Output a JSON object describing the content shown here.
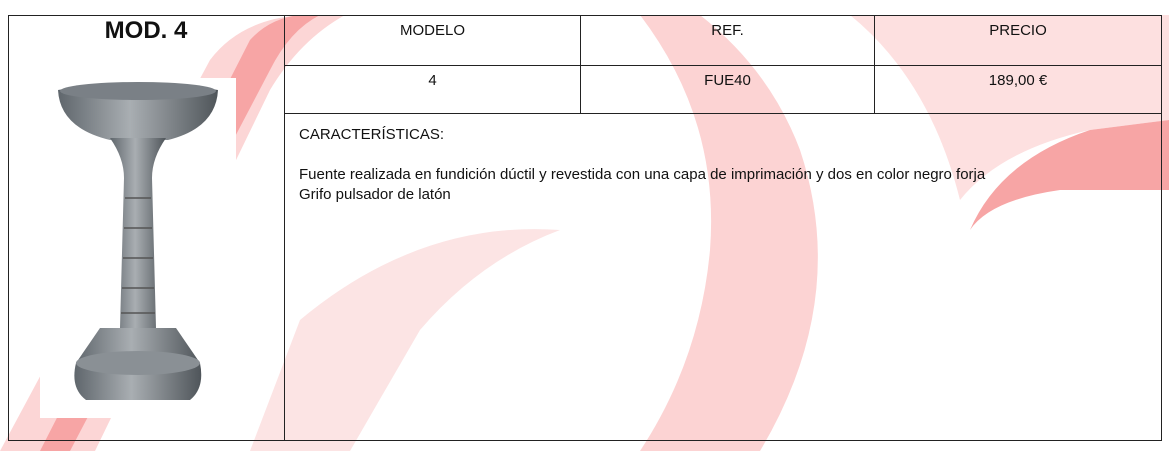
{
  "header": {
    "title": "MOD. 4"
  },
  "table": {
    "headers": [
      "MODELO",
      "REF.",
      "PRECIO"
    ],
    "rows": [
      [
        "4",
        "FUE40",
        "189,00 €"
      ]
    ]
  },
  "description": {
    "heading": "CARACTERÍSTICAS:",
    "lines": [
      "Fuente realizada en fundición dúctil y revestida con una capa de imprimación y dos en color negro forja",
      "Grifo pulsador de latón"
    ]
  }
}
